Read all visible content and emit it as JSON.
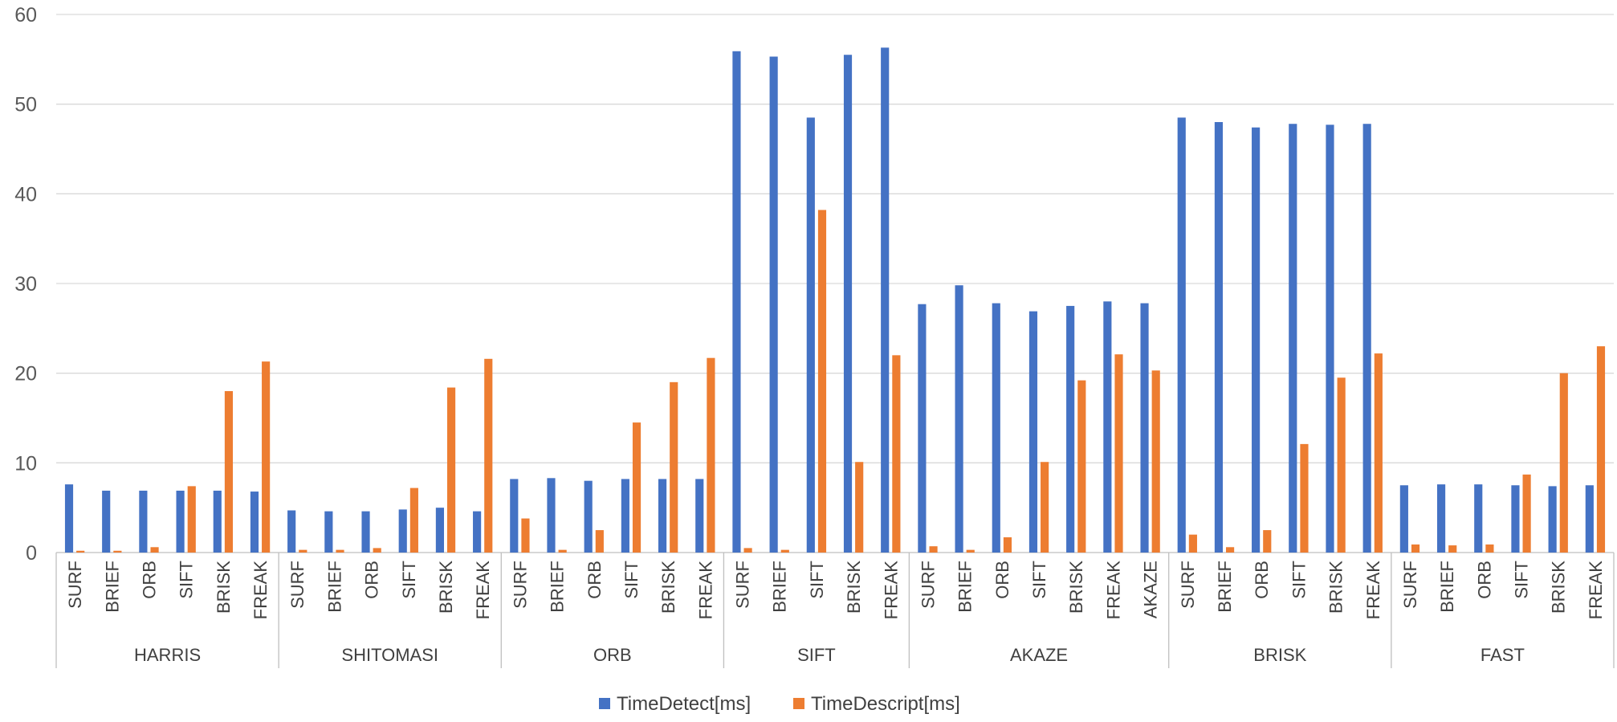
{
  "chart_data": {
    "type": "bar",
    "ylim": [
      0,
      60
    ],
    "yticks": [
      0,
      10,
      20,
      30,
      40,
      50,
      60
    ],
    "grid": true,
    "legend_position": "bottom",
    "colors": {
      "TimeDetect[ms]": "#4472c4",
      "TimeDescript[ms]": "#ed7d31"
    },
    "groups": [
      {
        "name": "HARRIS",
        "categories": [
          "SURF",
          "BRIEF",
          "ORB",
          "SIFT",
          "BRISK",
          "FREAK"
        ],
        "detect": [
          7.6,
          6.9,
          6.9,
          6.9,
          6.9,
          6.8
        ],
        "descript": [
          0.2,
          0.2,
          0.6,
          7.4,
          18.0,
          21.3
        ]
      },
      {
        "name": "SHITOMASI",
        "categories": [
          "SURF",
          "BRIEF",
          "ORB",
          "SIFT",
          "BRISK",
          "FREAK"
        ],
        "detect": [
          4.7,
          4.6,
          4.6,
          4.8,
          5.0,
          4.6
        ],
        "descript": [
          0.3,
          0.3,
          0.5,
          7.2,
          18.4,
          21.6
        ]
      },
      {
        "name": "ORB",
        "categories": [
          "SURF",
          "BRIEF",
          "ORB",
          "SIFT",
          "BRISK",
          "FREAK"
        ],
        "detect": [
          8.2,
          8.3,
          8.0,
          8.2,
          8.2,
          8.2
        ],
        "descript": [
          3.8,
          0.3,
          2.5,
          14.5,
          19.0,
          21.7
        ]
      },
      {
        "name": "SIFT",
        "categories": [
          "SURF",
          "BRIEF",
          "SIFT",
          "BRISK",
          "FREAK"
        ],
        "detect": [
          55.9,
          55.3,
          48.5,
          55.5,
          56.3
        ],
        "descript": [
          0.5,
          0.3,
          38.2,
          10.1,
          22.0
        ]
      },
      {
        "name": "AKAZE",
        "categories": [
          "SURF",
          "BRIEF",
          "ORB",
          "SIFT",
          "BRISK",
          "FREAK",
          "AKAZE"
        ],
        "detect": [
          27.7,
          29.8,
          27.8,
          26.9,
          27.5,
          28.0,
          27.8
        ],
        "descript": [
          0.7,
          0.3,
          1.7,
          10.1,
          19.2,
          22.1,
          20.3
        ]
      },
      {
        "name": "BRISK",
        "categories": [
          "SURF",
          "BRIEF",
          "ORB",
          "SIFT",
          "BRISK",
          "FREAK"
        ],
        "detect": [
          48.5,
          48.0,
          47.4,
          47.8,
          47.7,
          47.8
        ],
        "descript": [
          2.0,
          0.6,
          2.5,
          12.1,
          19.5,
          22.2
        ]
      },
      {
        "name": "FAST",
        "categories": [
          "SURF",
          "BRIEF",
          "ORB",
          "SIFT",
          "BRISK",
          "FREAK"
        ],
        "detect": [
          7.5,
          7.6,
          7.6,
          7.5,
          7.4,
          7.5
        ],
        "descript": [
          0.9,
          0.8,
          0.9,
          8.7,
          20.0,
          23.0
        ]
      }
    ],
    "series": [
      {
        "name": "TimeDetect[ms]",
        "key": "detect"
      },
      {
        "name": "TimeDescript[ms]",
        "key": "descript"
      }
    ]
  }
}
